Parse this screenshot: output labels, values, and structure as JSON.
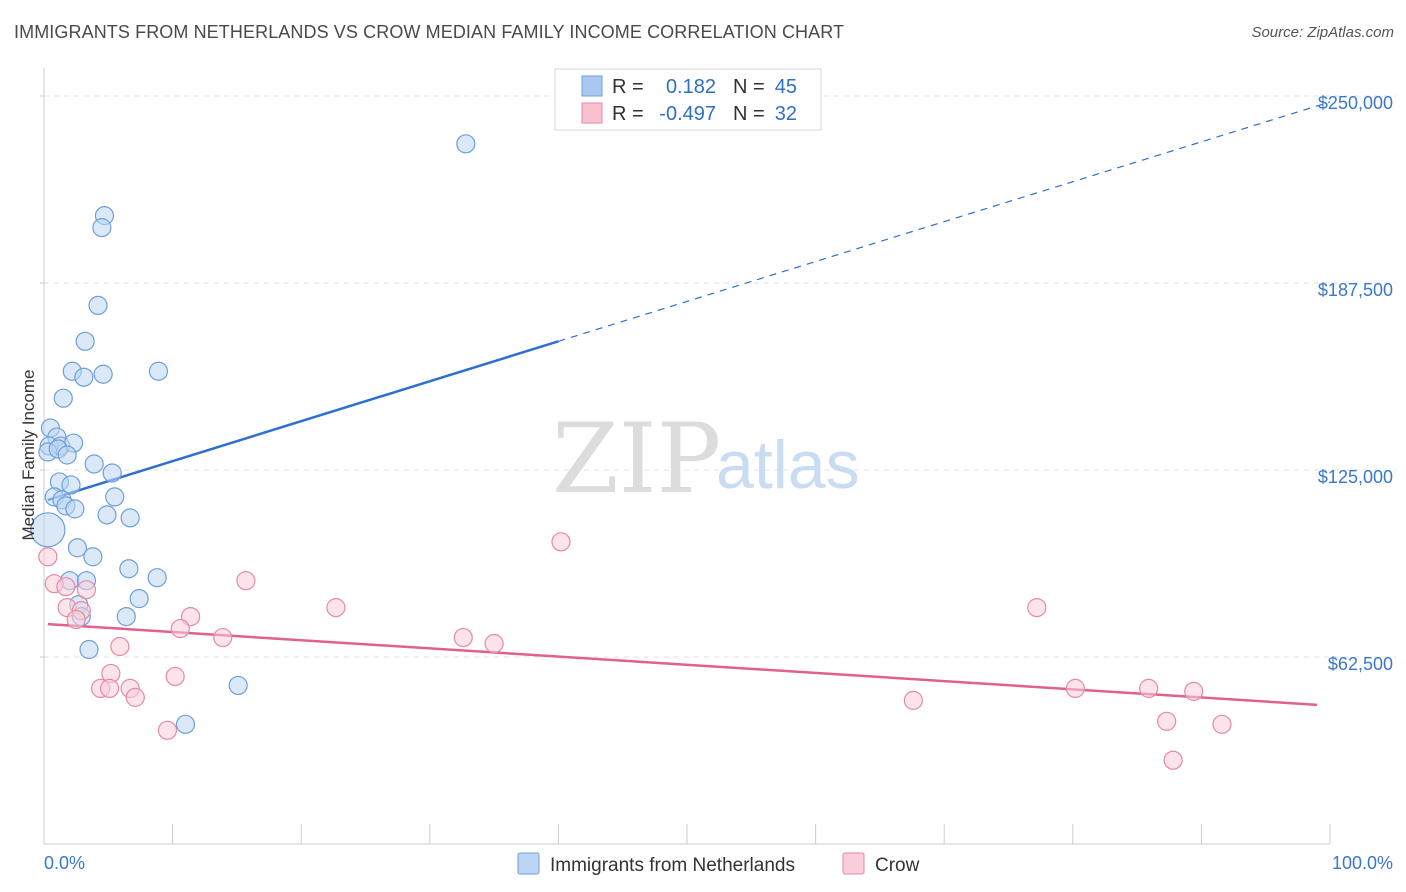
{
  "title": "IMMIGRANTS FROM NETHERLANDS VS CROW MEDIAN FAMILY INCOME CORRELATION CHART",
  "source": "Source: ZipAtlas.com",
  "watermark": {
    "zip": "ZIP",
    "atlas": "atlas"
  },
  "legend": {
    "rows": [
      {
        "r_label": "R =",
        "r_value": "0.182",
        "n_label": "N =",
        "n_value": "45",
        "color": "#a9c9f0",
        "stroke": "#6e9fd9"
      },
      {
        "r_label": "R =",
        "r_value": "-0.497",
        "n_label": "N =",
        "n_value": "32",
        "color": "#f7c1d0",
        "stroke": "#e48aa6"
      }
    ]
  },
  "bottom_legend": [
    {
      "label": "Immigrants from Netherlands",
      "color": "#bcd5f3",
      "stroke": "#6e9fd9"
    },
    {
      "label": "Crow",
      "color": "#f9cdd9",
      "stroke": "#e48aa6"
    }
  ],
  "chart_data": {
    "type": "scatter",
    "title": "IMMIGRANTS FROM NETHERLANDS VS CROW MEDIAN FAMILY INCOME CORRELATION CHART",
    "xlabel": "",
    "ylabel": "Median Family Income",
    "xlim": [
      0,
      100
    ],
    "ylim": [
      0,
      256000
    ],
    "x_tick_labels": {
      "left": "0.0%",
      "right": "100.0%"
    },
    "y_ticks": [
      {
        "value": 62500,
        "label": "$62,500"
      },
      {
        "value": 125000,
        "label": "$125,000"
      },
      {
        "value": 187500,
        "label": "$187,500"
      },
      {
        "value": 250000,
        "label": "$250,000"
      }
    ],
    "series": [
      {
        "name": "Immigrants from Netherlands",
        "color": "#6e9fd9",
        "fill": "#bcd5f3",
        "trend": {
          "x0": 0.3,
          "y0": 115000,
          "x1": 40,
          "y1": 168000,
          "dash_to_x": 100,
          "dash_to_y": 248000
        },
        "points": [
          {
            "x": 32.8,
            "y": 234000
          },
          {
            "x": 4.7,
            "y": 210000
          },
          {
            "x": 4.5,
            "y": 206000
          },
          {
            "x": 4.2,
            "y": 180000
          },
          {
            "x": 3.2,
            "y": 168000
          },
          {
            "x": 2.2,
            "y": 158000
          },
          {
            "x": 3.1,
            "y": 156000
          },
          {
            "x": 4.6,
            "y": 157000
          },
          {
            "x": 8.9,
            "y": 158000
          },
          {
            "x": 1.5,
            "y": 149000
          },
          {
            "x": 0.5,
            "y": 139000
          },
          {
            "x": 1.0,
            "y": 136000
          },
          {
            "x": 0.4,
            "y": 133000
          },
          {
            "x": 1.3,
            "y": 133000
          },
          {
            "x": 2.3,
            "y": 134000
          },
          {
            "x": 0.3,
            "y": 131000
          },
          {
            "x": 1.1,
            "y": 132000
          },
          {
            "x": 1.8,
            "y": 130000
          },
          {
            "x": 3.9,
            "y": 127000
          },
          {
            "x": 5.3,
            "y": 124000
          },
          {
            "x": 1.2,
            "y": 121000
          },
          {
            "x": 2.1,
            "y": 120000
          },
          {
            "x": 0.8,
            "y": 116000
          },
          {
            "x": 1.4,
            "y": 115000
          },
          {
            "x": 5.5,
            "y": 116000
          },
          {
            "x": 1.7,
            "y": 113000
          },
          {
            "x": 2.4,
            "y": 112000
          },
          {
            "x": 4.9,
            "y": 110000
          },
          {
            "x": 6.7,
            "y": 109000
          },
          {
            "x": 0.3,
            "y": 105000,
            "r": 17
          },
          {
            "x": 2.6,
            "y": 99000
          },
          {
            "x": 3.8,
            "y": 96000
          },
          {
            "x": 6.6,
            "y": 92000
          },
          {
            "x": 8.8,
            "y": 89000
          },
          {
            "x": 2.0,
            "y": 88000
          },
          {
            "x": 3.3,
            "y": 88000
          },
          {
            "x": 7.4,
            "y": 82000
          },
          {
            "x": 2.7,
            "y": 80000
          },
          {
            "x": 6.4,
            "y": 76000
          },
          {
            "x": 2.9,
            "y": 76000
          },
          {
            "x": 3.5,
            "y": 65000
          },
          {
            "x": 15.1,
            "y": 53000
          },
          {
            "x": 11.0,
            "y": 40000
          }
        ]
      },
      {
        "name": "Crow",
        "color": "#e48aa6",
        "fill": "#f9cdd9",
        "trend": {
          "x0": 0.3,
          "y0": 73500,
          "x1": 99,
          "y1": 46500
        },
        "points": [
          {
            "x": 0.3,
            "y": 96000
          },
          {
            "x": 0.8,
            "y": 87000
          },
          {
            "x": 1.7,
            "y": 86000
          },
          {
            "x": 3.3,
            "y": 85000
          },
          {
            "x": 1.8,
            "y": 79000
          },
          {
            "x": 2.9,
            "y": 78000
          },
          {
            "x": 2.5,
            "y": 75000
          },
          {
            "x": 40.2,
            "y": 101000
          },
          {
            "x": 15.7,
            "y": 88000
          },
          {
            "x": 22.7,
            "y": 79000
          },
          {
            "x": 11.4,
            "y": 76000
          },
          {
            "x": 10.6,
            "y": 72000
          },
          {
            "x": 13.9,
            "y": 69000
          },
          {
            "x": 32.6,
            "y": 69000
          },
          {
            "x": 35.0,
            "y": 67000
          },
          {
            "x": 5.9,
            "y": 66000
          },
          {
            "x": 5.2,
            "y": 57000
          },
          {
            "x": 10.2,
            "y": 56000
          },
          {
            "x": 4.4,
            "y": 52000
          },
          {
            "x": 5.1,
            "y": 52000
          },
          {
            "x": 6.7,
            "y": 52000
          },
          {
            "x": 7.1,
            "y": 49000
          },
          {
            "x": 9.6,
            "y": 38000
          },
          {
            "x": 77.2,
            "y": 79000
          },
          {
            "x": 67.6,
            "y": 48000
          },
          {
            "x": 80.2,
            "y": 52000
          },
          {
            "x": 85.9,
            "y": 52000
          },
          {
            "x": 89.4,
            "y": 51000
          },
          {
            "x": 87.3,
            "y": 41000
          },
          {
            "x": 91.6,
            "y": 40000
          },
          {
            "x": 87.8,
            "y": 28000
          }
        ]
      }
    ]
  }
}
